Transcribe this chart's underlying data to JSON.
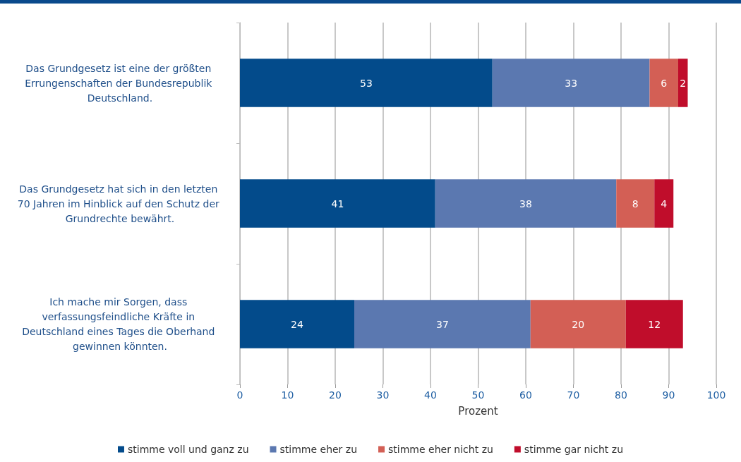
{
  "chart_data": {
    "type": "bar",
    "orientation": "horizontal",
    "stacked": true,
    "xlabel": "Prozent",
    "categories": [
      "Das Grundgesetz ist eine der größten Errungenschaften der Bundesrepublik Deutschland.",
      "Das Grundgesetz hat sich in den letzten 70 Jahren im Hinblick auf den Schutz der Grundrechte bewährt.",
      "Ich mache mir Sorgen, dass verfassungsfeindliche Kräfte in Deutschland eines Tages die Oberhand gewinnen könnten."
    ],
    "series": [
      {
        "name": "stimme voll und ganz zu",
        "color": "#034b8b",
        "values": [
          53,
          41,
          24
        ]
      },
      {
        "name": "stimme eher zu",
        "color": "#5b78b0",
        "values": [
          33,
          38,
          37
        ]
      },
      {
        "name": "stimme eher nicht zu",
        "color": "#d35f55",
        "values": [
          6,
          8,
          20
        ]
      },
      {
        "name": "stimme gar nicht zu",
        "color": "#c00d2b",
        "values": [
          2,
          4,
          12
        ]
      }
    ],
    "xlim": [
      0,
      100
    ],
    "xticks": [
      0,
      10,
      20,
      30,
      40,
      50,
      60,
      70,
      80,
      90,
      100
    ],
    "grid": "x",
    "legend": "bottom",
    "data_labels": true
  }
}
